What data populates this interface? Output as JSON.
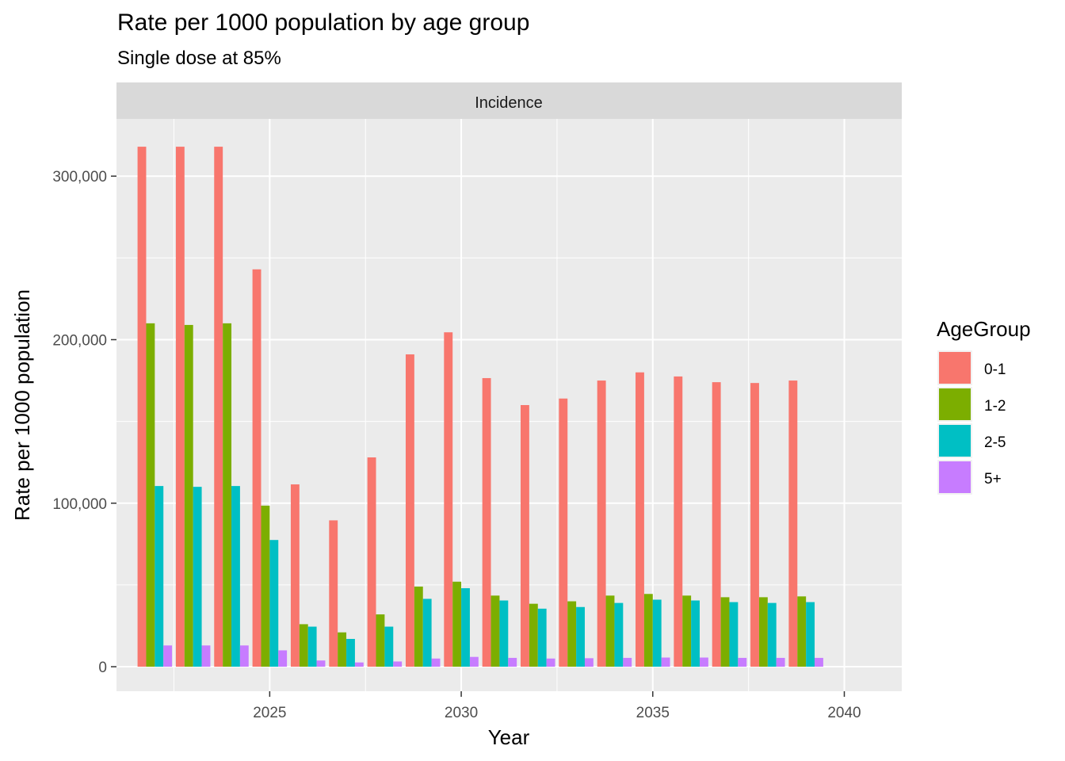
{
  "chart_data": {
    "type": "bar",
    "title": "Rate per 1000 population by age group",
    "subtitle": "Single dose at 85%",
    "facet": "Incidence",
    "xlabel": "Year",
    "ylabel": "Rate per 1000 population",
    "x": [
      2022,
      2023,
      2024,
      2025,
      2026,
      2027,
      2028,
      2029,
      2030,
      2031,
      2032,
      2033,
      2034,
      2035,
      2036,
      2037,
      2038,
      2039
    ],
    "series": [
      {
        "name": "0-1",
        "color": "#F8766D",
        "values": [
          318000,
          318000,
          318000,
          243000,
          111500,
          89500,
          128000,
          191000,
          204500,
          176500,
          160000,
          164000,
          175000,
          180000,
          177500,
          174000,
          173500,
          175000
        ]
      },
      {
        "name": "1-2",
        "color": "#7CAE00",
        "values": [
          210000,
          209000,
          210000,
          98500,
          26000,
          21000,
          32000,
          49000,
          52000,
          43500,
          38500,
          40000,
          43500,
          44500,
          43500,
          42500,
          42500,
          43000
        ]
      },
      {
        "name": "2-5",
        "color": "#00BFC4",
        "values": [
          110500,
          110000,
          110500,
          77500,
          24500,
          17000,
          24500,
          41500,
          48000,
          40500,
          35500,
          36500,
          39000,
          41000,
          40500,
          39500,
          39000,
          39500
        ]
      },
      {
        "name": "5+",
        "color": "#C77CFF",
        "values": [
          13000,
          13000,
          13000,
          10000,
          3800,
          2600,
          3200,
          5000,
          6000,
          5400,
          5000,
          5200,
          5400,
          5600,
          5600,
          5400,
          5400,
          5400
        ]
      }
    ],
    "xlim": [
      2021.0,
      2041.5
    ],
    "ylim": [
      -15000,
      335000
    ],
    "x_ticks": [
      {
        "value": 2025,
        "label": "2025"
      },
      {
        "value": 2030,
        "label": "2030"
      },
      {
        "value": 2035,
        "label": "2035"
      },
      {
        "value": 2040,
        "label": "2040"
      }
    ],
    "y_ticks": [
      {
        "value": 0,
        "label": "0"
      },
      {
        "value": 100000,
        "label": "100,000"
      },
      {
        "value": 200000,
        "label": "200,000"
      },
      {
        "value": 300000,
        "label": "300,000"
      }
    ],
    "legend": {
      "title": "AgeGroup",
      "position": "right"
    },
    "panel_background": "#EBEBEB",
    "strip_background": "#D9D9D9",
    "grid": true
  }
}
